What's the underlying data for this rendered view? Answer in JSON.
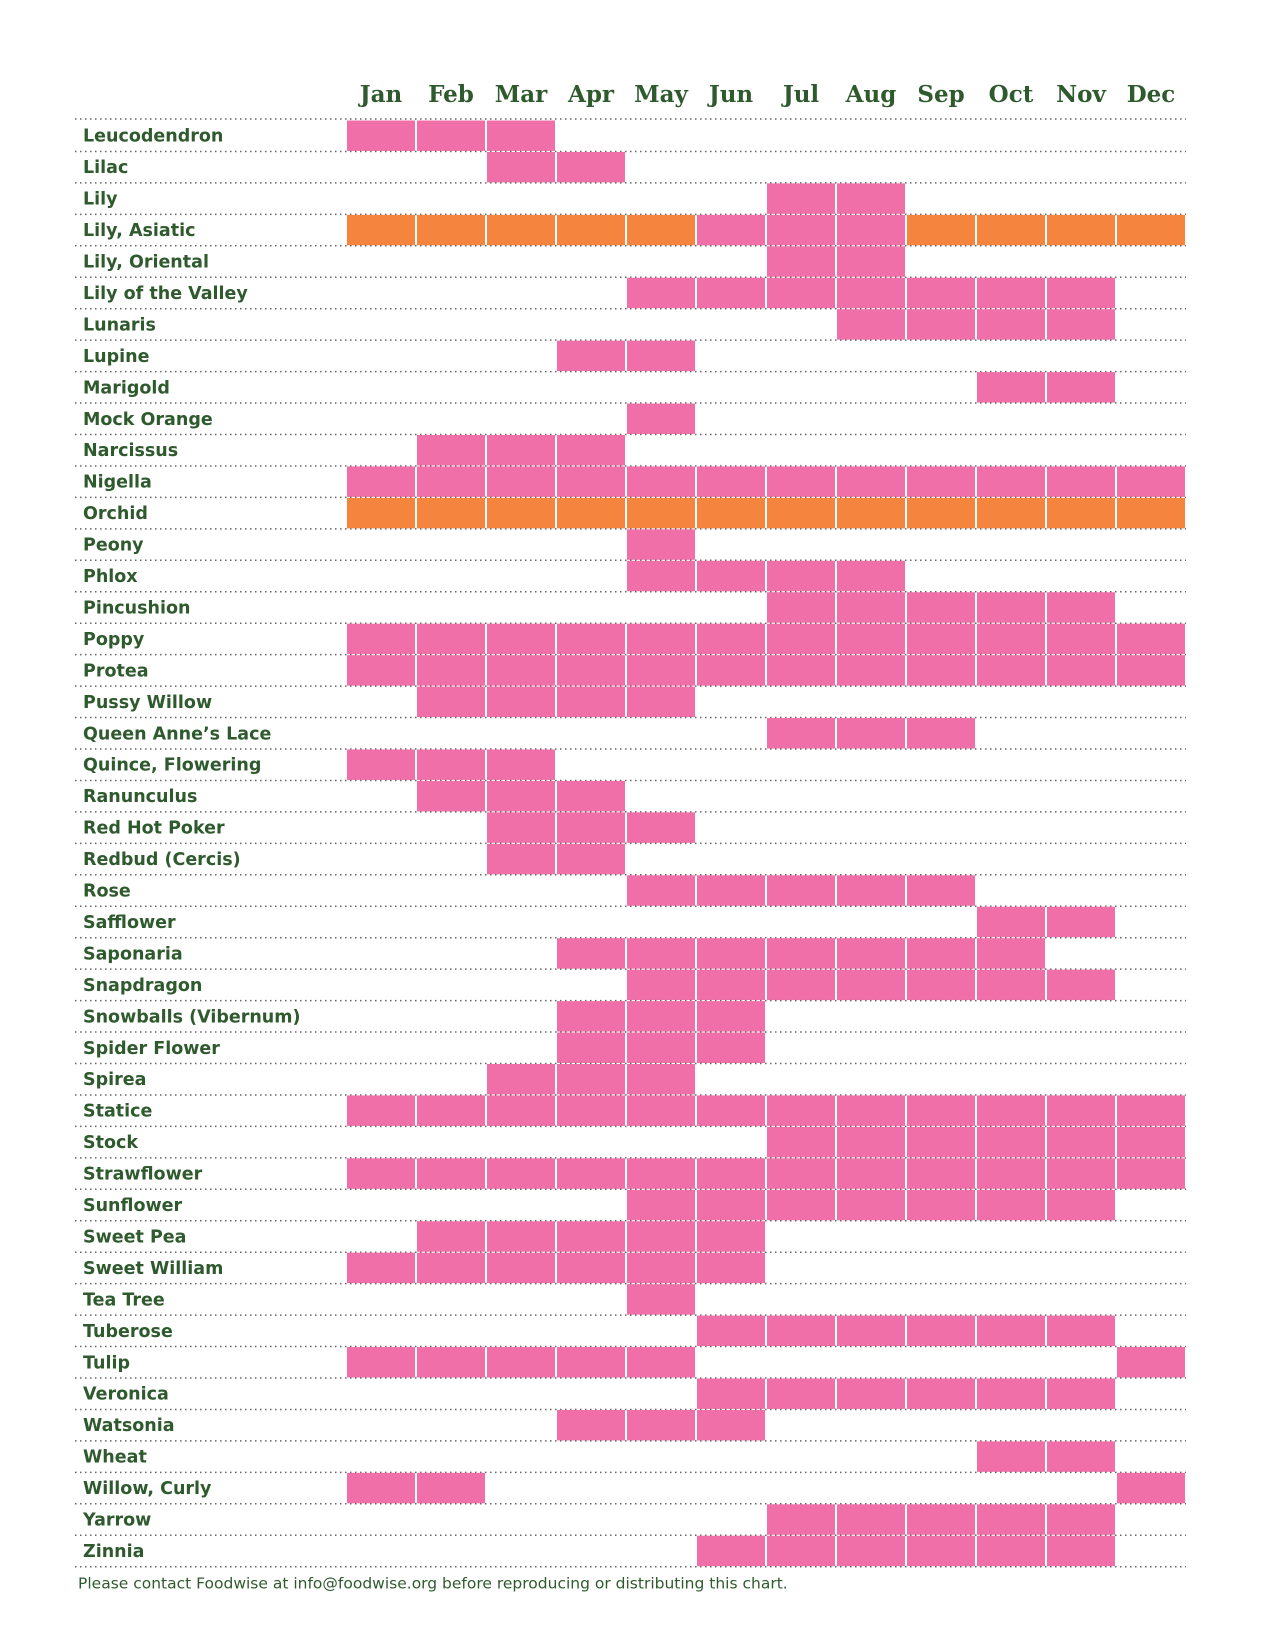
{
  "months": [
    "Jan",
    "Feb",
    "Mar",
    "Apr",
    "May",
    "Jun",
    "Jul",
    "Aug",
    "Sep",
    "Oct",
    "Nov",
    "Dec"
  ],
  "colors": {
    "p": "#f06fa9",
    "o": "#f5843f"
  },
  "rows": [
    {
      "name": "Leucodendron",
      "season": "ppp........."
    },
    {
      "name": "Lilac",
      "season": "..pp........"
    },
    {
      "name": "Lily",
      "season": "......pp...."
    },
    {
      "name": "Lily, Asiatic",
      "season": "ooooopppoooo"
    },
    {
      "name": "Lily, Oriental",
      "season": "......pp...."
    },
    {
      "name": "Lily of the Valley",
      "season": "....ppppppp."
    },
    {
      "name": "Lunaris",
      "season": ".......pppp."
    },
    {
      "name": "Lupine",
      "season": "...pp......."
    },
    {
      "name": "Marigold",
      "season": ".........pp."
    },
    {
      "name": "Mock Orange",
      "season": "....p......."
    },
    {
      "name": "Narcissus",
      "season": ".ppp........"
    },
    {
      "name": "Nigella",
      "season": "pppppppppppp"
    },
    {
      "name": "Orchid",
      "season": "oooooooooooo"
    },
    {
      "name": "Peony",
      "season": "....p......."
    },
    {
      "name": "Phlox",
      "season": "....pppp...."
    },
    {
      "name": "Pincushion",
      "season": "......ppppp."
    },
    {
      "name": "Poppy",
      "season": "pppppppppppp"
    },
    {
      "name": "Protea",
      "season": "pppppppppppp"
    },
    {
      "name": "Pussy Willow",
      "season": ".pppp......."
    },
    {
      "name": "Queen Anne’s Lace",
      "season": "......ppp..."
    },
    {
      "name": "Quince, Flowering",
      "season": "ppp........."
    },
    {
      "name": "Ranunculus",
      "season": ".ppp........"
    },
    {
      "name": "Red Hot Poker",
      "season": "..ppp......."
    },
    {
      "name": "Redbud (Cercis)",
      "season": "..pp........"
    },
    {
      "name": "Rose",
      "season": "....ppppp..."
    },
    {
      "name": "Safflower",
      "season": ".........pp."
    },
    {
      "name": "Saponaria",
      "season": "...ppppppp.."
    },
    {
      "name": "Snapdragon",
      "season": "....ppppppp."
    },
    {
      "name": "Snowballs (Vibernum)",
      "season": "...ppp......"
    },
    {
      "name": "Spider Flower",
      "season": "...ppp......"
    },
    {
      "name": "Spirea",
      "season": "..ppp......."
    },
    {
      "name": "Statice",
      "season": "pppppppppppp"
    },
    {
      "name": "Stock",
      "season": "......pppppp"
    },
    {
      "name": "Strawflower",
      "season": "pppppppppppp"
    },
    {
      "name": "Sunflower",
      "season": "....ppppppp."
    },
    {
      "name": "Sweet Pea",
      "season": ".ppppp......"
    },
    {
      "name": "Sweet William",
      "season": "pppppp......"
    },
    {
      "name": "Tea Tree",
      "season": "....p......."
    },
    {
      "name": "Tuberose",
      "season": ".....pppppp."
    },
    {
      "name": "Tulip",
      "season": "ppppp......p"
    },
    {
      "name": "Veronica",
      "season": ".....pppppp."
    },
    {
      "name": "Watsonia",
      "season": "...ppp......"
    },
    {
      "name": "Wheat",
      "season": ".........pp."
    },
    {
      "name": "Willow, Curly",
      "season": "pp.........p"
    },
    {
      "name": "Yarrow",
      "season": "......ppppp."
    },
    {
      "name": "Zinnia",
      "season": ".....pppppp."
    }
  ],
  "footer": "Please contact Foodwise at info@foodwise.org before reproducing or distributing this chart."
}
